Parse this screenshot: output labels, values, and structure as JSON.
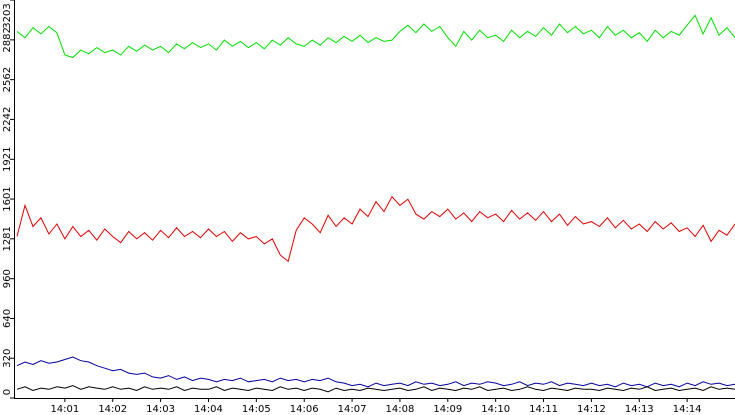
{
  "chart_data": {
    "type": "line",
    "categories": [
      null,
      null,
      null,
      null,
      null,
      null,
      "14:01",
      null,
      null,
      null,
      null,
      null,
      "14:02",
      null,
      null,
      null,
      null,
      null,
      "14:03",
      null,
      null,
      null,
      null,
      null,
      "14:04",
      null,
      null,
      null,
      null,
      null,
      "14:05",
      null,
      null,
      null,
      null,
      null,
      "14:06",
      null,
      null,
      null,
      null,
      null,
      "14:07",
      null,
      null,
      null,
      null,
      null,
      "14:08",
      null,
      null,
      null,
      null,
      null,
      "14:09",
      null,
      null,
      null,
      null,
      null,
      "14:10",
      null,
      null,
      null,
      null,
      null,
      "14:11",
      null,
      null,
      null,
      null,
      null,
      "14:12",
      null,
      null,
      null,
      null,
      null,
      "14:13",
      null,
      null,
      null,
      null,
      null,
      "14:14",
      null,
      null,
      null,
      null,
      null,
      null
    ],
    "series": [
      {
        "color": "#00e000",
        "values": [
          2950,
          2900,
          2980,
          2930,
          2990,
          2940,
          2760,
          2740,
          2800,
          2770,
          2820,
          2780,
          2800,
          2760,
          2830,
          2790,
          2840,
          2800,
          2830,
          2780,
          2850,
          2810,
          2860,
          2820,
          2850,
          2800,
          2880,
          2830,
          2870,
          2820,
          2860,
          2810,
          2880,
          2840,
          2900,
          2850,
          2830,
          2880,
          2840,
          2900,
          2860,
          2910,
          2870,
          2920,
          2860,
          2900,
          2870,
          2880,
          2950,
          3000,
          2940,
          3010,
          2950,
          2990,
          2900,
          2830,
          2950,
          2880,
          2960,
          2900,
          2920,
          2870,
          2960,
          2900,
          2950,
          2910,
          2980,
          2920,
          3010,
          2940,
          2990,
          2930,
          2960,
          2900,
          2990,
          2920,
          2960,
          2900,
          2940,
          2870,
          2960,
          2900,
          2950,
          2920,
          3000,
          3080,
          2930,
          3060,
          2920,
          2980,
          2900
        ]
      },
      {
        "color": "#e00000",
        "values": [
          1300,
          1550,
          1380,
          1450,
          1320,
          1400,
          1280,
          1380,
          1300,
          1350,
          1270,
          1360,
          1300,
          1250,
          1340,
          1280,
          1330,
          1270,
          1350,
          1290,
          1370,
          1300,
          1340,
          1290,
          1360,
          1300,
          1340,
          1260,
          1330,
          1280,
          1300,
          1240,
          1280,
          1150,
          1100,
          1350,
          1450,
          1400,
          1330,
          1470,
          1380,
          1450,
          1400,
          1520,
          1460,
          1580,
          1500,
          1620,
          1550,
          1600,
          1480,
          1440,
          1500,
          1460,
          1520,
          1440,
          1490,
          1420,
          1500,
          1450,
          1480,
          1420,
          1510,
          1440,
          1490,
          1430,
          1500,
          1420,
          1480,
          1390,
          1460,
          1400,
          1420,
          1380,
          1450,
          1370,
          1430,
          1360,
          1400,
          1340,
          1420,
          1360,
          1410,
          1340,
          1370,
          1300,
          1390,
          1260,
          1350,
          1310,
          1400
        ]
      },
      {
        "color": "#0000a0",
        "values": [
          260,
          290,
          270,
          300,
          280,
          290,
          310,
          330,
          300,
          290,
          260,
          240,
          220,
          230,
          200,
          190,
          200,
          170,
          160,
          180,
          150,
          170,
          140,
          160,
          150,
          130,
          150,
          140,
          160,
          130,
          140,
          150,
          130,
          160,
          140,
          150,
          130,
          150,
          140,
          160,
          130,
          120,
          100,
          110,
          90,
          120,
          100,
          110,
          120,
          100,
          130,
          110,
          120,
          100,
          110,
          130,
          100,
          120,
          110,
          130,
          120,
          100,
          110,
          130,
          100,
          120,
          110,
          130,
          100,
          120,
          110,
          100,
          120,
          100,
          110,
          90,
          120,
          100,
          110,
          90,
          120,
          100,
          110,
          90,
          120,
          100,
          130,
          110,
          120,
          100,
          110
        ]
      },
      {
        "color": "#000000",
        "values": [
          70,
          90,
          60,
          80,
          70,
          90,
          80,
          100,
          70,
          90,
          80,
          70,
          90,
          70,
          80,
          60,
          90,
          70,
          80,
          70,
          90,
          60,
          80,
          70,
          70,
          90,
          60,
          80,
          70,
          60,
          80,
          70,
          60,
          90,
          70,
          80,
          60,
          80,
          70,
          50,
          80,
          60,
          70,
          60,
          80,
          70,
          60,
          70,
          80,
          60,
          70,
          90,
          60,
          80,
          70,
          60,
          80,
          70,
          90,
          60,
          70,
          80,
          60,
          70,
          90,
          70,
          60,
          80,
          70,
          60,
          80,
          70,
          70,
          60,
          80,
          70,
          60,
          80,
          70,
          90,
          60,
          70,
          80,
          60,
          70,
          80,
          60,
          90,
          70,
          80,
          70
        ]
      }
    ],
    "ylim": [
      0,
      3203
    ],
    "yticks": [
      0,
      320,
      640,
      960,
      1281,
      1601,
      1921,
      2242,
      2562,
      2882,
      3203
    ]
  }
}
